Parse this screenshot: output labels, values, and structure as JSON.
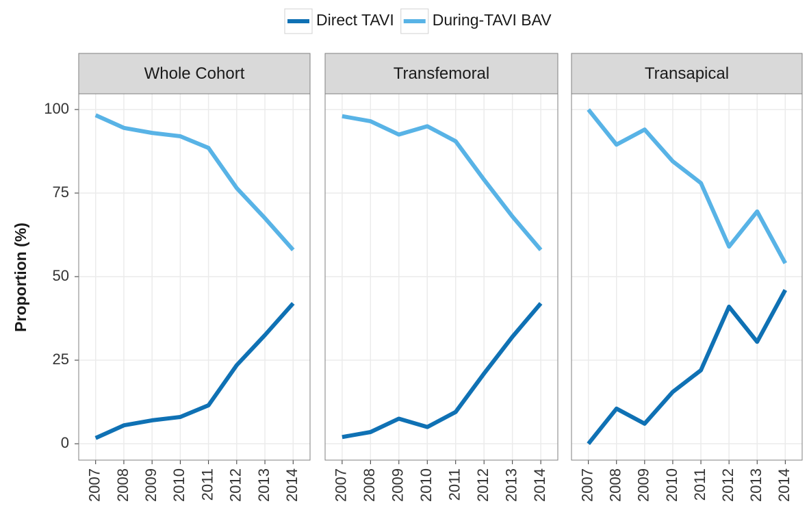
{
  "chart_data": [
    {
      "type": "line",
      "title": "Whole Cohort",
      "y_label": "Proportion (%)",
      "legend": "top",
      "categories": [
        "2007",
        "2008",
        "2009",
        "2010",
        "2011",
        "2012",
        "2013",
        "2014"
      ],
      "series": [
        {
          "name": "Direct TAVI",
          "color": "#0f71b4",
          "values": [
            1.7,
            5.5,
            7,
            8,
            11.5,
            23.5,
            32.5,
            42
          ]
        },
        {
          "name": "During-TAVI BAV",
          "color": "#58b3e6",
          "values": [
            98.3,
            94.5,
            93,
            92,
            88.5,
            76.5,
            67.5,
            58
          ]
        }
      ],
      "ylim": [
        -4.9,
        104.7
      ],
      "yticks": [
        0,
        25,
        50,
        75,
        100
      ],
      "grid": true
    },
    {
      "type": "line",
      "title": "Transfemoral",
      "categories": [
        "2007",
        "2008",
        "2009",
        "2010",
        "2011",
        "2012",
        "2013",
        "2014"
      ],
      "series": [
        {
          "name": "Direct TAVI",
          "color": "#0f71b4",
          "values": [
            2,
            3.5,
            7.5,
            5,
            9.5,
            21,
            32,
            42
          ]
        },
        {
          "name": "During-TAVI BAV",
          "color": "#58b3e6",
          "values": [
            98,
            96.5,
            92.5,
            95,
            90.5,
            79,
            68,
            58
          ]
        }
      ],
      "ylim": [
        -4.9,
        104.7
      ],
      "yticks": [
        0,
        25,
        50,
        75,
        100
      ],
      "grid": true
    },
    {
      "type": "line",
      "title": "Transapical",
      "categories": [
        "2007",
        "2008",
        "2009",
        "2010",
        "2011",
        "2012",
        "2013",
        "2014"
      ],
      "series": [
        {
          "name": "Direct TAVI",
          "color": "#0f71b4",
          "values": [
            0,
            10.5,
            6,
            15.5,
            22,
            41,
            30.5,
            46
          ]
        },
        {
          "name": "During-TAVI BAV",
          "color": "#58b3e6",
          "values": [
            100,
            89.5,
            94,
            84.5,
            78,
            59,
            69.5,
            54
          ]
        }
      ],
      "ylim": [
        -4.9,
        104.7
      ],
      "yticks": [
        0,
        25,
        50,
        75,
        100
      ],
      "grid": true
    }
  ]
}
